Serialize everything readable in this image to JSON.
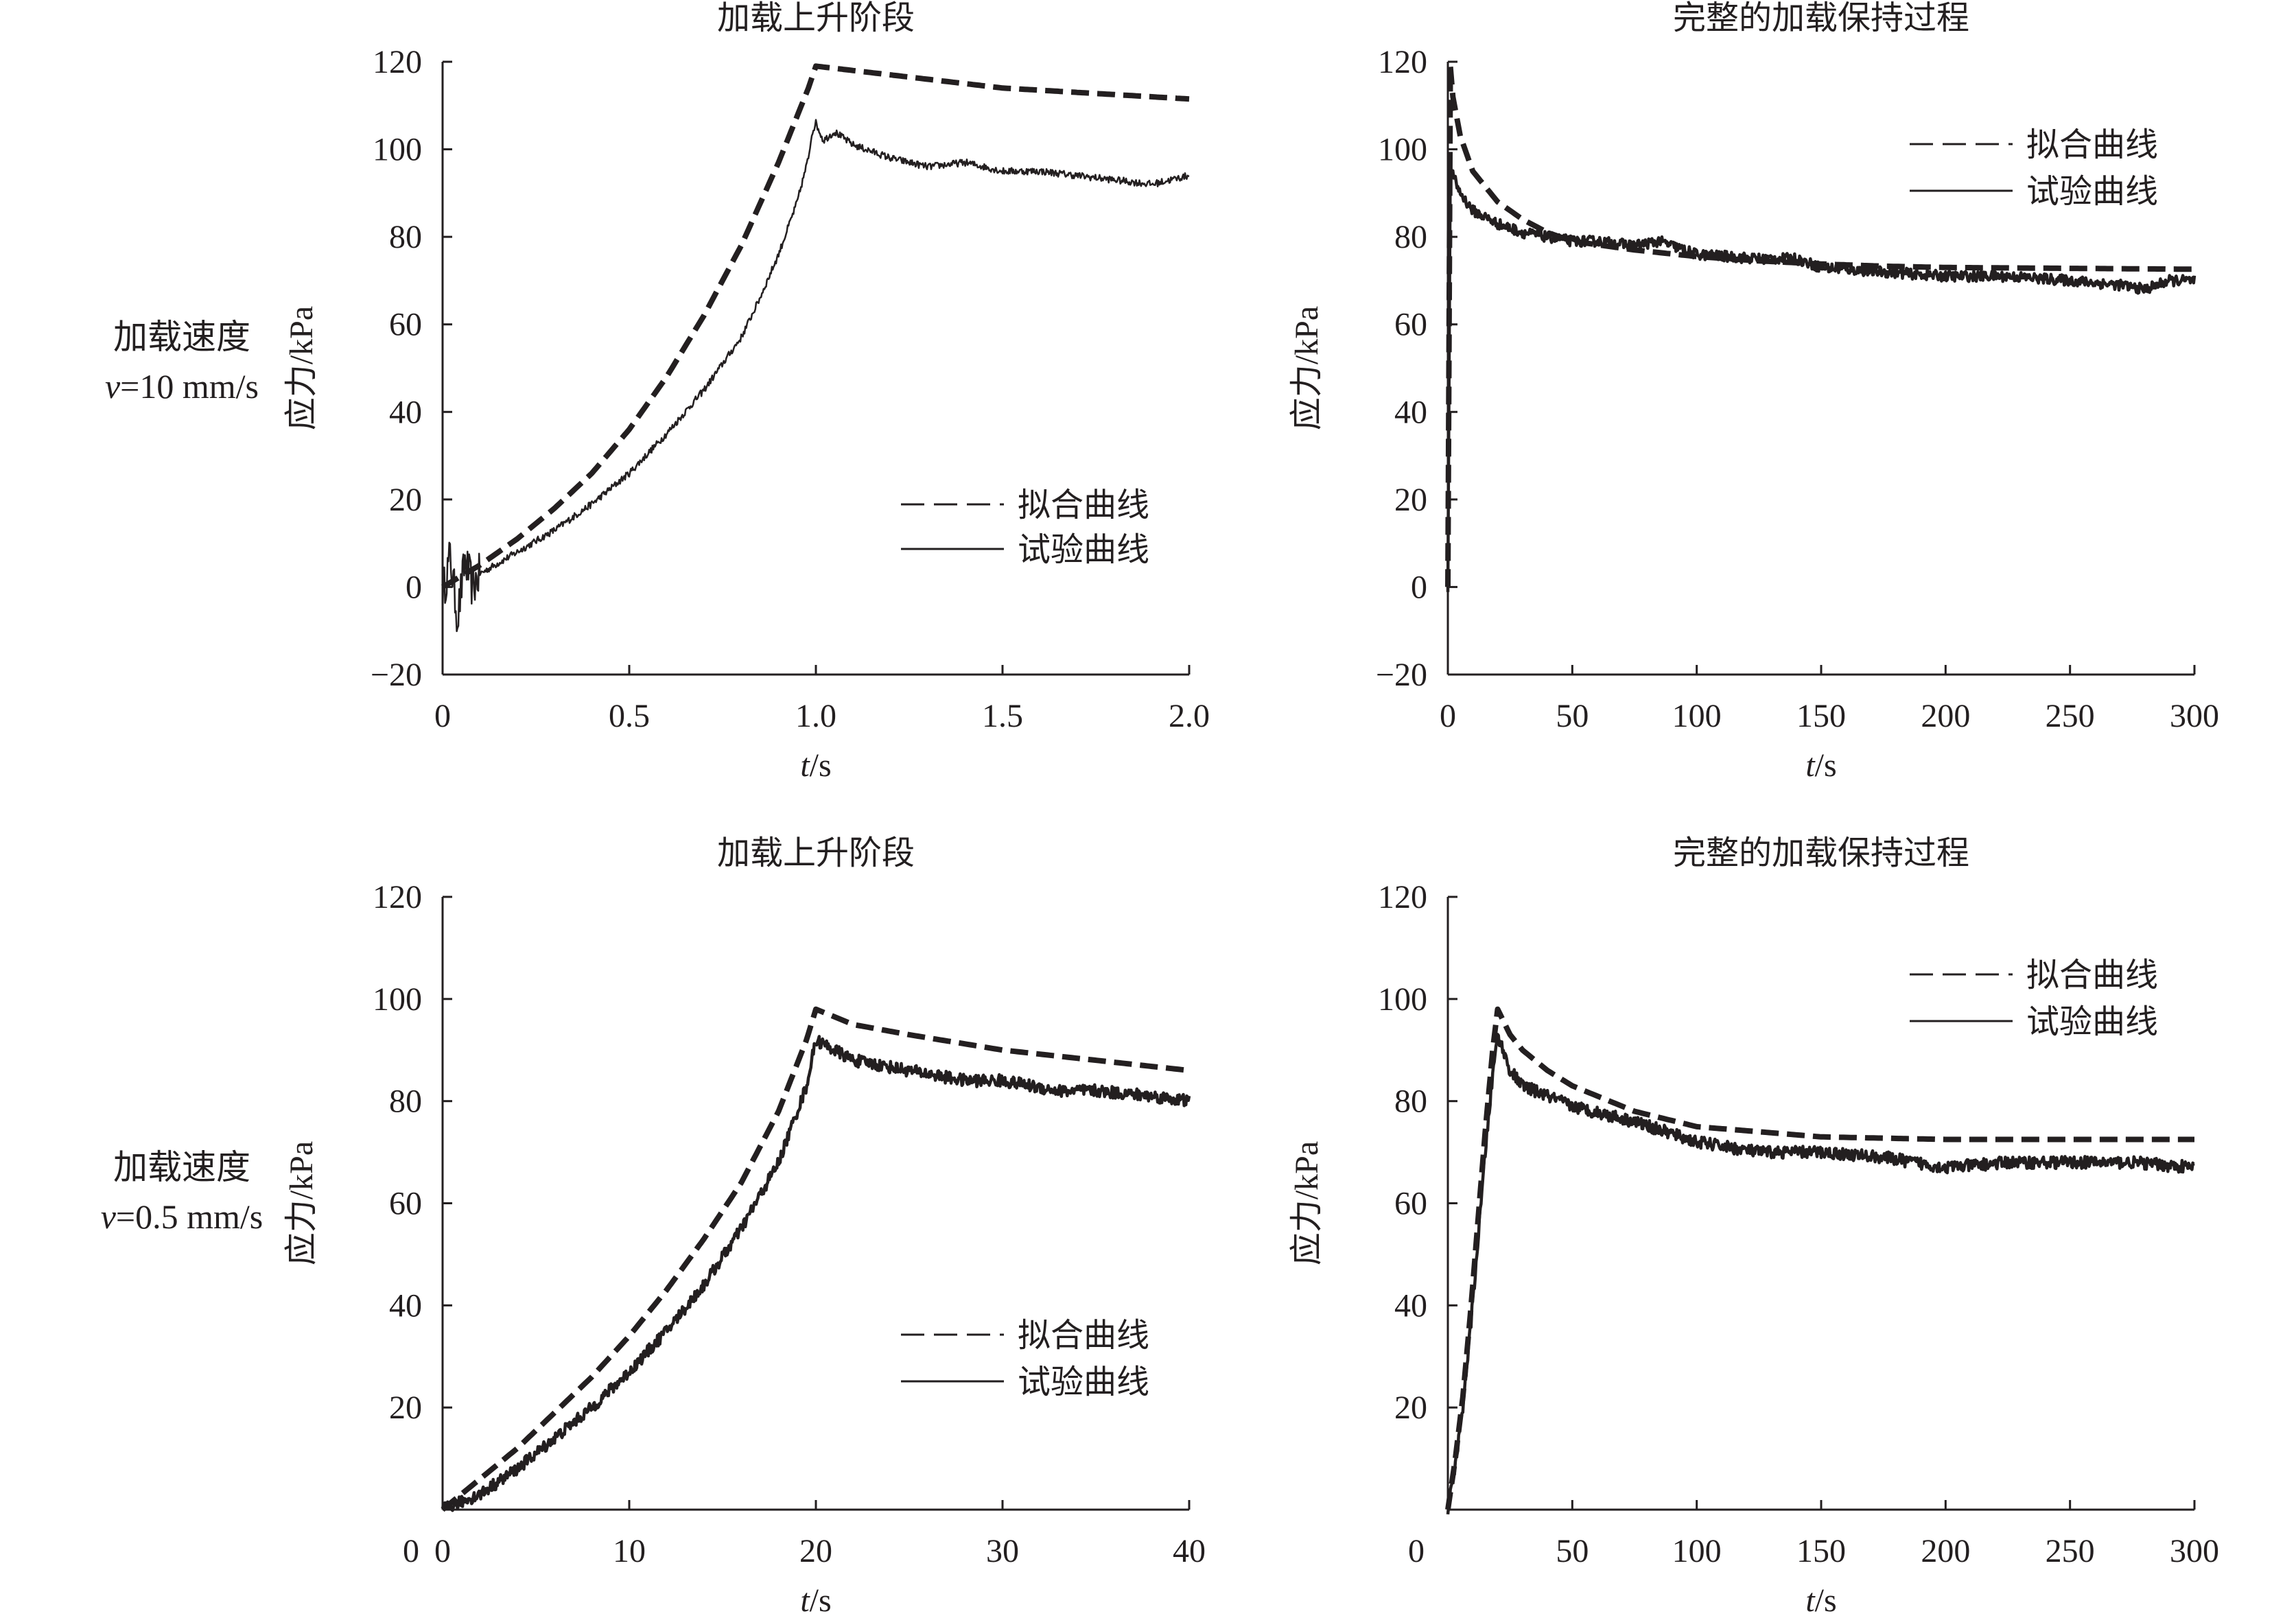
{
  "rows": [
    {
      "label": "加载速度",
      "speed_var": "v",
      "speed_value": "=10 mm/s"
    },
    {
      "label": "加载速度",
      "speed_var": "v",
      "speed_value": "=0.5 mm/s"
    }
  ],
  "colors": {
    "ink": "#231f20",
    "background": "#ffffff"
  },
  "chart_data": [
    {
      "id": "row1-left",
      "type": "line",
      "title": "加载上升阶段",
      "ylabel": "应力/kPa",
      "xlabel_var": "t",
      "xlabel_unit": "/s",
      "xlim": [
        0,
        2.0
      ],
      "ylim": [
        -20,
        120
      ],
      "xticks": [
        0,
        0.5,
        1.0,
        1.5,
        2.0
      ],
      "xtick_labels": [
        "0",
        "0.5",
        "1.0",
        "1.5",
        "2.0"
      ],
      "yticks": [
        -20,
        0,
        20,
        40,
        60,
        80,
        100,
        120
      ],
      "ytick_labels": [
        "−20",
        "0",
        "20",
        "40",
        "60",
        "80",
        "100",
        "120"
      ],
      "legend_position": "lower-right",
      "grid": false,
      "series": [
        {
          "name": "拟合曲线",
          "style": "dashed",
          "x": [
            0,
            0.1,
            0.2,
            0.3,
            0.4,
            0.5,
            0.6,
            0.7,
            0.8,
            0.9,
            0.98,
            1.0,
            1.1,
            1.2,
            1.3,
            1.4,
            1.5,
            1.6,
            1.7,
            1.8,
            1.9,
            2.0
          ],
          "y": [
            0,
            5,
            11,
            18,
            26,
            36,
            48,
            62,
            78,
            97,
            114,
            119,
            118,
            117,
            116,
            115,
            114,
            113.5,
            113,
            112.5,
            112,
            111.5
          ]
        },
        {
          "name": "试验曲线",
          "style": "solid",
          "x": [
            0,
            0.02,
            0.04,
            0.06,
            0.08,
            0.1,
            0.2,
            0.3,
            0.4,
            0.5,
            0.6,
            0.7,
            0.8,
            0.85,
            0.9,
            0.95,
            0.98,
            0.99,
            1.0,
            1.02,
            1.05,
            1.1,
            1.2,
            1.3,
            1.4,
            1.5,
            1.6,
            1.7,
            1.8,
            1.9,
            2.0
          ],
          "y": [
            -2,
            7,
            -7,
            6,
            0,
            3,
            8,
            13,
            19,
            26,
            35,
            45,
            57,
            66,
            76,
            88,
            98,
            104,
            106,
            102,
            104,
            101,
            98,
            96,
            97,
            95,
            95,
            94,
            93,
            92,
            94
          ]
        }
      ]
    },
    {
      "id": "row1-right",
      "type": "line",
      "title": "完整的加载保持过程",
      "ylabel": "应力/kPa",
      "xlabel_var": "t",
      "xlabel_unit": "/s",
      "xlim": [
        0,
        300
      ],
      "ylim": [
        -20,
        120
      ],
      "xticks": [
        0,
        50,
        100,
        150,
        200,
        250,
        300
      ],
      "xtick_labels": [
        "0",
        "50",
        "100",
        "150",
        "200",
        "250",
        "300"
      ],
      "yticks": [
        -20,
        0,
        20,
        40,
        60,
        80,
        100,
        120
      ],
      "ytick_labels": [
        "−20",
        "0",
        "20",
        "40",
        "60",
        "80",
        "100",
        "120"
      ],
      "legend_position": "top-right",
      "grid": false,
      "series": [
        {
          "name": "拟合曲线",
          "style": "dashed",
          "x": [
            0,
            0.5,
            1,
            2,
            5,
            10,
            20,
            30,
            40,
            50,
            75,
            100,
            125,
            150,
            175,
            200,
            250,
            300
          ],
          "y": [
            0,
            60,
            119,
            112,
            103,
            95,
            88,
            84,
            81,
            79,
            77,
            75.5,
            74.5,
            73.8,
            73.3,
            73,
            72.8,
            72.6
          ]
        },
        {
          "name": "试验曲线",
          "style": "solid",
          "x": [
            0,
            0.5,
            1,
            2,
            5,
            10,
            20,
            30,
            40,
            50,
            60,
            75,
            85,
            100,
            125,
            140,
            150,
            175,
            200,
            225,
            250,
            270,
            280,
            290,
            300
          ],
          "y": [
            0,
            50,
            96,
            94,
            90,
            86,
            83,
            81,
            80,
            79,
            79,
            78,
            79,
            76,
            75,
            75,
            73,
            72,
            71,
            71,
            70,
            69,
            68,
            70,
            70
          ]
        }
      ]
    },
    {
      "id": "row2-left",
      "type": "line",
      "title": "加载上升阶段",
      "ylabel": "应力/kPa",
      "xlabel_var": "t",
      "xlabel_unit": "/s",
      "xlim": [
        0,
        40
      ],
      "ylim": [
        0,
        120
      ],
      "xticks": [
        0,
        10,
        20,
        30,
        40
      ],
      "xtick_labels": [
        "0",
        "10",
        "20",
        "30",
        "40"
      ],
      "yticks": [
        20,
        40,
        60,
        80,
        100,
        120
      ],
      "ytick_labels": [
        "20",
        "40",
        "60",
        "80",
        "100",
        "120"
      ],
      "legend_position": "lower-right",
      "grid": false,
      "series": [
        {
          "name": "拟合曲线",
          "style": "dashed",
          "x": [
            0,
            2,
            4,
            6,
            8,
            10,
            12,
            14,
            16,
            18,
            19.5,
            20,
            22,
            25,
            30,
            35,
            40
          ],
          "y": [
            0,
            6,
            12,
            19,
            26,
            34,
            43,
            53,
            64,
            78,
            92,
            98,
            95,
            93,
            90,
            88,
            86
          ]
        },
        {
          "name": "试验曲线",
          "style": "solid",
          "x": [
            0,
            2,
            4,
            6,
            8,
            10,
            12,
            14,
            16,
            18,
            19.5,
            20,
            22,
            25,
            28,
            30,
            33,
            35,
            38,
            40
          ],
          "y": [
            0,
            3,
            8,
            14,
            20,
            27,
            35,
            44,
            55,
            68,
            83,
            92,
            88,
            86,
            84,
            84,
            82,
            82,
            81,
            80
          ]
        }
      ]
    },
    {
      "id": "row2-right",
      "type": "line",
      "title": "完整的加载保持过程",
      "ylabel": "应力/kPa",
      "xlabel_var": "t",
      "xlabel_unit": "/s",
      "xlim": [
        0,
        300
      ],
      "ylim": [
        0,
        120
      ],
      "xticks": [
        50,
        100,
        150,
        200,
        250,
        300
      ],
      "xtick_labels": [
        "50",
        "100",
        "150",
        "200",
        "250",
        "300"
      ],
      "yticks": [
        20,
        40,
        60,
        80,
        100,
        120
      ],
      "ytick_labels": [
        "20",
        "40",
        "60",
        "80",
        "100",
        "120"
      ],
      "legend_position": "top-right",
      "grid": false,
      "series": [
        {
          "name": "拟合曲线",
          "style": "dashed",
          "x": [
            0,
            3,
            6,
            9,
            12,
            15,
            18,
            20,
            25,
            30,
            40,
            50,
            75,
            100,
            150,
            200,
            250,
            300
          ],
          "y": [
            0,
            10,
            22,
            38,
            56,
            74,
            90,
            98,
            93,
            90,
            86,
            83,
            78,
            75,
            73,
            72.5,
            72.5,
            72.5
          ]
        },
        {
          "name": "试验曲线",
          "style": "solid",
          "x": [
            0,
            3,
            6,
            9,
            12,
            15,
            18,
            20,
            25,
            30,
            40,
            50,
            75,
            100,
            125,
            150,
            175,
            200,
            225,
            250,
            275,
            300
          ],
          "y": [
            0,
            9,
            20,
            35,
            52,
            70,
            85,
            93,
            86,
            83,
            81,
            79,
            76,
            72,
            70,
            70,
            69,
            67,
            68,
            68,
            68,
            67
          ]
        }
      ]
    }
  ],
  "axis_origin_labels": [
    "0",
    "0"
  ]
}
